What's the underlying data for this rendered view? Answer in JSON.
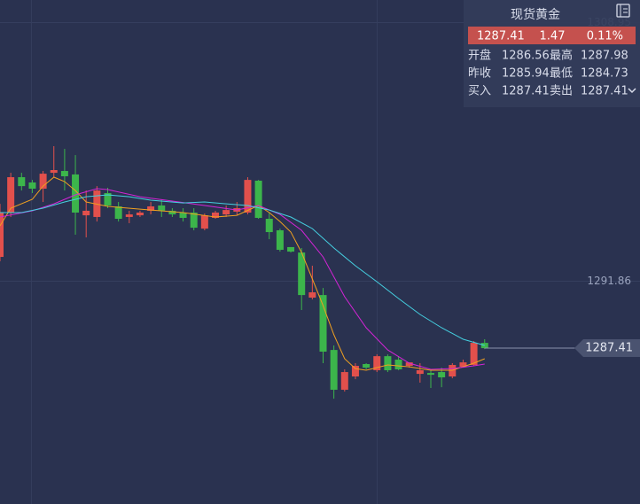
{
  "chart_data": {
    "type": "candlestick",
    "x": [
      0,
      1,
      2,
      3,
      4,
      5,
      6,
      7,
      8,
      9,
      10,
      11,
      12,
      13,
      14,
      15,
      16,
      17,
      18,
      19,
      20,
      21,
      22,
      23,
      24,
      25,
      26,
      27,
      28,
      29,
      30,
      31,
      32,
      33,
      34,
      35,
      36,
      37,
      38,
      39,
      40,
      41,
      42,
      43,
      44,
      45
    ],
    "open": [
      1293.44,
      1296.37,
      1298.71,
      1298.36,
      1297.95,
      1299.0,
      1299.12,
      1298.89,
      1296.19,
      1296.08,
      1297.66,
      1296.78,
      1296.08,
      1296.19,
      1296.49,
      1296.84,
      1296.49,
      1296.37,
      1296.37,
      1295.31,
      1296.02,
      1296.25,
      1296.43,
      1296.37,
      1298.48,
      1295.96,
      1295.2,
      1294.09,
      1293.73,
      1290.75,
      1290.92,
      1287.29,
      1284.66,
      1285.54,
      1286.36,
      1285.95,
      1286.88,
      1286.65,
      1286.24,
      1285.71,
      1285.77,
      1285.83,
      1285.54,
      1286.18,
      1286.3,
      1287.76
    ],
    "high": [
      1296.95,
      1299.0,
      1299.0,
      1298.53,
      1299.12,
      1300.76,
      1300.58,
      1300.17,
      1297.83,
      1298.12,
      1298.01,
      1297.07,
      1296.49,
      1296.49,
      1297.07,
      1297.25,
      1296.66,
      1296.66,
      1296.66,
      1296.31,
      1296.49,
      1296.84,
      1297.07,
      1298.71,
      1298.53,
      1296.37,
      1295.31,
      1294.09,
      1294.03,
      1292.86,
      1291.39,
      1287.59,
      1286.01,
      1286.42,
      1286.42,
      1287.0,
      1287.0,
      1286.88,
      1286.42,
      1286.42,
      1285.95,
      1286.12,
      1286.42,
      1286.65,
      1287.88,
      1288.0
    ],
    "low": [
      1293.15,
      1296.08,
      1297.83,
      1297.66,
      1297.07,
      1298.71,
      1297.83,
      1294.91,
      1294.73,
      1295.78,
      1296.66,
      1295.78,
      1295.67,
      1296.08,
      1296.25,
      1296.08,
      1296.08,
      1295.78,
      1295.2,
      1295.2,
      1295.96,
      1296.08,
      1296.19,
      1296.25,
      1295.96,
      1294.61,
      1293.79,
      1293.73,
      1289.93,
      1290.63,
      1286.42,
      1284.07,
      1284.54,
      1285.36,
      1286.01,
      1285.83,
      1285.83,
      1285.95,
      1286.12,
      1285.13,
      1284.78,
      1284.83,
      1285.42,
      1286.12,
      1286.24,
      1287.35
    ],
    "close": [
      1296.37,
      1298.71,
      1298.12,
      1297.95,
      1298.94,
      1299.18,
      1298.77,
      1296.37,
      1296.49,
      1297.83,
      1296.84,
      1295.96,
      1296.25,
      1296.37,
      1296.78,
      1296.49,
      1296.25,
      1296.02,
      1295.37,
      1296.19,
      1296.37,
      1296.54,
      1296.66,
      1298.53,
      1296.02,
      1295.08,
      1293.91,
      1293.79,
      1290.92,
      1291.1,
      1287.18,
      1284.66,
      1285.83,
      1286.24,
      1286.12,
      1286.88,
      1285.95,
      1286.01,
      1286.47,
      1285.95,
      1285.65,
      1285.48,
      1286.3,
      1286.47,
      1287.76,
      1287.41
    ],
    "up_color": "#e2504c",
    "down_color": "#3cb54b",
    "ma_lines": [
      {
        "color": "#f0a020",
        "x": [
          0,
          1,
          3,
          4,
          5,
          6,
          7,
          8,
          10,
          13,
          17,
          20,
          22,
          24,
          25,
          26,
          27,
          28,
          29,
          30,
          31,
          32,
          33,
          34,
          36,
          38,
          40,
          42,
          44,
          45
        ],
        "values": [
          1295.49,
          1296.66,
          1297.25,
          1298.12,
          1298.71,
          1298.42,
          1297.83,
          1297.07,
          1296.78,
          1296.6,
          1296.37,
          1296.08,
          1296.19,
          1296.84,
          1296.37,
          1295.78,
          1295.08,
          1293.73,
          1291.98,
          1290.22,
          1288.29,
          1286.71,
          1286.06,
          1285.95,
          1286.3,
          1286.18,
          1285.95,
          1285.95,
          1286.42,
          1286.71
        ]
      },
      {
        "color": "#d324d6",
        "x": [
          0,
          3,
          5,
          7,
          9,
          10,
          13,
          16,
          19,
          22,
          24,
          26,
          28,
          30,
          32,
          34,
          36,
          38,
          40,
          42,
          44,
          45
        ],
        "values": [
          1296.08,
          1296.49,
          1296.95,
          1297.54,
          1297.95,
          1297.89,
          1297.42,
          1297.13,
          1296.84,
          1296.54,
          1296.84,
          1296.25,
          1295.2,
          1293.44,
          1290.81,
          1288.76,
          1287.29,
          1286.42,
          1286.01,
          1286.06,
          1286.24,
          1286.36
        ]
      },
      {
        "color": "#45cfe0",
        "x": [
          0,
          2,
          4,
          6,
          8,
          10,
          12,
          14,
          17,
          19,
          21,
          23,
          25,
          27,
          29,
          31,
          33,
          35,
          37,
          39,
          41,
          43,
          45
        ],
        "values": [
          1296.37,
          1296.37,
          1296.66,
          1297.07,
          1297.42,
          1297.54,
          1297.42,
          1297.19,
          1297.01,
          1297.07,
          1296.95,
          1296.84,
          1296.54,
          1296.08,
          1295.31,
          1294.03,
          1292.86,
          1291.8,
          1290.69,
          1289.64,
          1288.76,
          1288.0,
          1287.59
        ]
      }
    ],
    "ylim": [
      1277.11,
      1310.42
    ],
    "yticks": [
      1308.95,
      1291.86
    ],
    "grid": true,
    "last_price": 1287.41
  },
  "quote": {
    "title": "现货黄金",
    "price": "1287.41",
    "change": "1.47",
    "change_pct": "0.11%",
    "rows": [
      [
        "开盘",
        "1286.56",
        "最高",
        "1287.98"
      ],
      [
        "昨收",
        "1285.94",
        "最低",
        "1284.73"
      ],
      [
        "买入",
        "1287.41",
        "卖出",
        "1287.41"
      ]
    ]
  }
}
